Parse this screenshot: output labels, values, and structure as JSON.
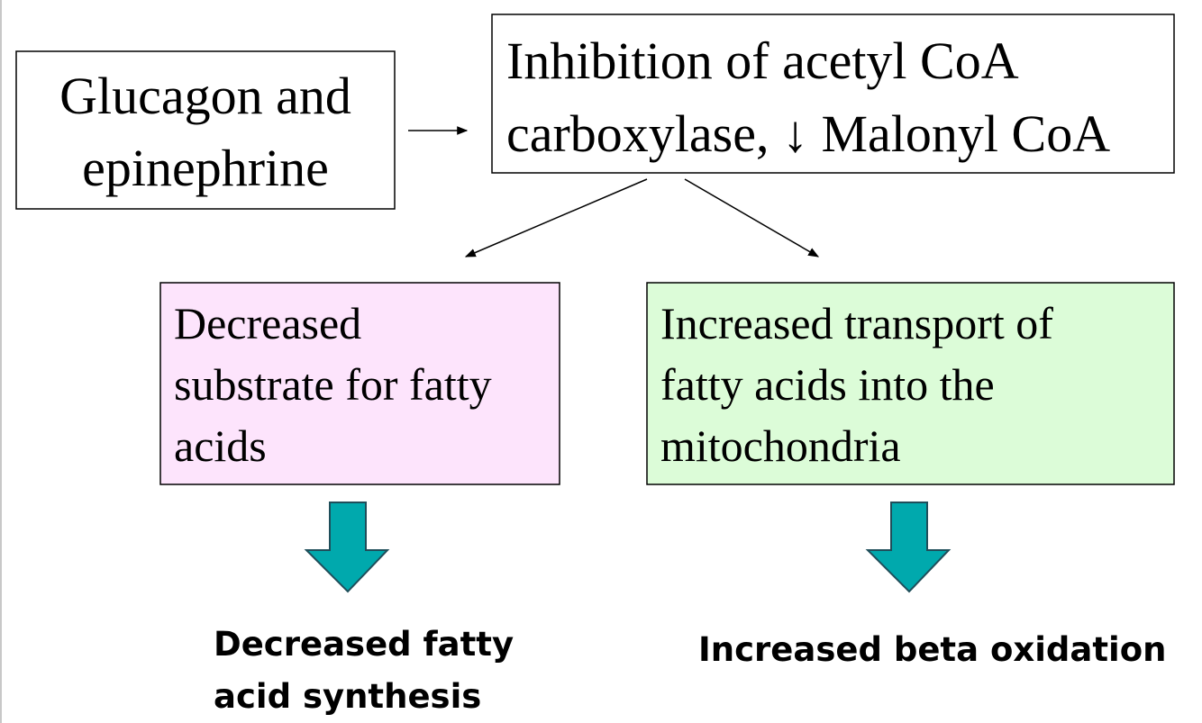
{
  "nodes": [
    {
      "lines": [
        "Glucagon and",
        "epinephrine"
      ]
    },
    {
      "lines": [
        "Inhibition of acetyl CoA",
        "carboxylase, ↓ Malonyl CoA"
      ]
    },
    {
      "lines": [
        "Decreased",
        "substrate for fatty",
        "acids"
      ]
    },
    {
      "lines": [
        "Increased transport of",
        "fatty acids into the",
        "mitochondria"
      ]
    },
    {
      "lines": [
        "Decreased fatty",
        "acid synthesis"
      ]
    },
    {
      "lines": [
        "Increased beta oxidation"
      ]
    }
  ]
}
